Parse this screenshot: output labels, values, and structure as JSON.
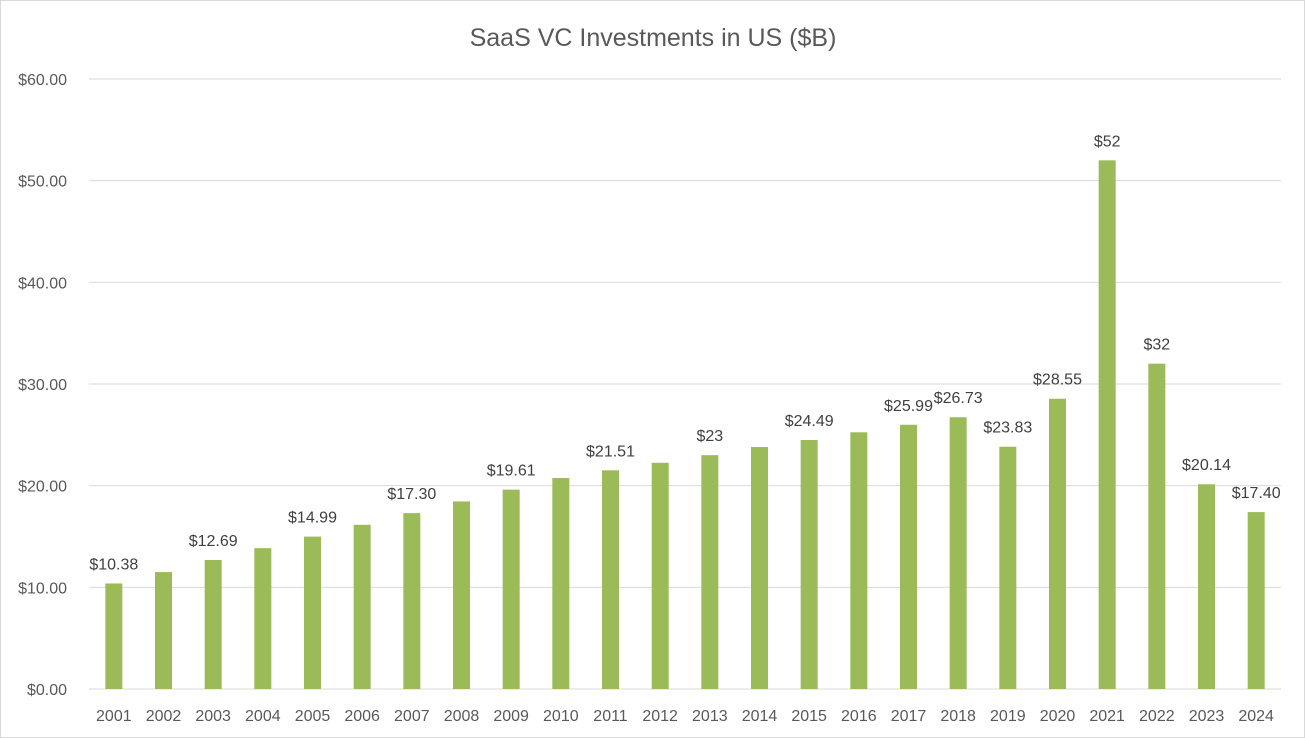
{
  "chart_data": {
    "type": "bar",
    "title": "SaaS VC Investments in US ($B)",
    "xlabel": "",
    "ylabel": "",
    "ylim": [
      0,
      60
    ],
    "y_ticks": [
      0,
      10,
      20,
      30,
      40,
      50,
      60
    ],
    "y_tick_labels": [
      "$0.00",
      "$10.00",
      "$20.00",
      "$30.00",
      "$40.00",
      "$50.00",
      "$60.00"
    ],
    "grid": true,
    "legend": "none",
    "bar_color": "#9bbb59",
    "categories": [
      "2001",
      "2002",
      "2003",
      "2004",
      "2005",
      "2006",
      "2007",
      "2008",
      "2009",
      "2010",
      "2011",
      "2012",
      "2013",
      "2014",
      "2015",
      "2016",
      "2017",
      "2018",
      "2019",
      "2020",
      "2021",
      "2022",
      "2023",
      "2024"
    ],
    "values": [
      10.38,
      11.5,
      12.69,
      13.85,
      14.99,
      16.15,
      17.3,
      18.45,
      19.61,
      20.75,
      21.51,
      22.25,
      23,
      23.8,
      24.49,
      25.25,
      25.99,
      26.73,
      23.83,
      28.55,
      52,
      32,
      20.14,
      17.4
    ],
    "data_labels": [
      "$10.38",
      "",
      "$12.69",
      "",
      "$14.99",
      "",
      "$17.30",
      "",
      "$19.61",
      "",
      "$21.51",
      "",
      "$23",
      "",
      "$24.49",
      "",
      "$25.99",
      "$26.73",
      "$23.83",
      "$28.55",
      "$52",
      "$32",
      "$20.14",
      "$17.40"
    ]
  }
}
